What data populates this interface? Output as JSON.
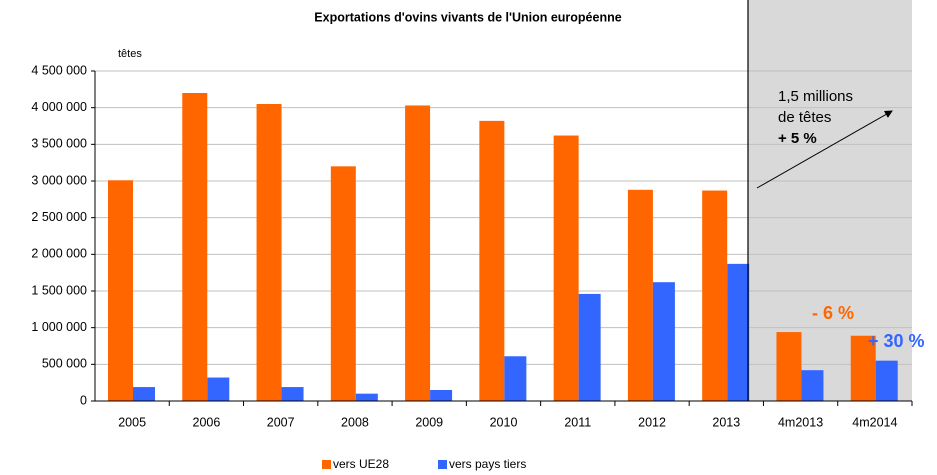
{
  "chart_data": {
    "type": "bar",
    "title": "Exportations d'ovins vivants de l'Union européenne",
    "y_axis_label": "têtes",
    "categories": [
      "2005",
      "2006",
      "2007",
      "2008",
      "2009",
      "2010",
      "2011",
      "2012",
      "2013",
      "4m2013",
      "4m2014"
    ],
    "series": [
      {
        "name": "vers UE28",
        "color": "#ff6600",
        "values": [
          3010000,
          4200000,
          4050000,
          3200000,
          4030000,
          3820000,
          3620000,
          2880000,
          2870000,
          940000,
          890000
        ]
      },
      {
        "name": "vers pays tiers",
        "color": "#3366ff",
        "values": [
          190000,
          320000,
          190000,
          100000,
          150000,
          610000,
          1460000,
          1620000,
          1870000,
          420000,
          550000
        ]
      }
    ],
    "ylim": [
      0,
      4500000
    ],
    "yticks": [
      0,
      {
        "value": 500000,
        "label": "500 000"
      },
      {
        "value": 1000000,
        "label": "1 000 000"
      },
      {
        "value": 1500000,
        "label": "1 500 000"
      },
      {
        "value": 2000000,
        "label": "2 000 000"
      },
      {
        "value": 2500000,
        "label": "2 500 000"
      },
      {
        "value": 3000000,
        "label": "3 000 000"
      },
      {
        "value": 3500000,
        "label": "3 500 000"
      },
      {
        "value": 4000000,
        "label": "4 000 000"
      },
      {
        "value": 4500000,
        "label": "4 500 000"
      }
    ],
    "grid": true,
    "legend": "bottom",
    "annotations": {
      "total_line1": "1,5 millions",
      "total_line2": "de têtes",
      "total_change": "+ 5 %",
      "ue_change": "- 6 %",
      "tiers_change": "+ 30 %"
    }
  }
}
